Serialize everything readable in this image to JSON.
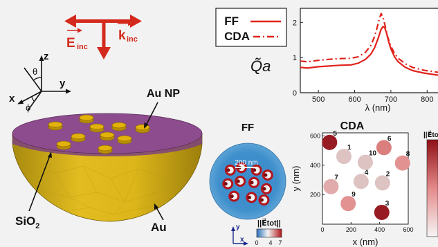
{
  "schematic": {
    "e_label": "E",
    "e_sub": "inc",
    "k_label": "k",
    "k_sub": "inc",
    "axis_z": "z",
    "axis_x": "x",
    "axis_y": "y",
    "theta": "θ",
    "phi": "ϕ",
    "np_label": "Au NP",
    "sio2_label": "SiO",
    "sio2_sub": "2",
    "au_label": "Au",
    "colors": {
      "arrow": "#d42a1d",
      "sio2": "#8b4d8c",
      "au": "#d9b21a",
      "np": "#e3b20a"
    }
  },
  "legend": {
    "ff": "FF",
    "cda": "CDA",
    "color": "#e0221b"
  },
  "spectrum": {
    "ylabel": "Q̃a",
    "xlabel": "λ (nm)",
    "xticks": [
      "500",
      "600",
      "700",
      "800"
    ],
    "yticks": [
      "0",
      "1",
      "2"
    ]
  },
  "chart_data": {
    "type": "line",
    "xlabel": "λ (nm)",
    "ylabel": "Q̃a",
    "xlim": [
      450,
      830
    ],
    "ylim": [
      0,
      2.4
    ],
    "series": [
      {
        "name": "FF",
        "style": "solid",
        "x": [
          450,
          470,
          500,
          530,
          560,
          590,
          610,
          630,
          645,
          655,
          665,
          672,
          678,
          683,
          688,
          693,
          700,
          710,
          720,
          740,
          760,
          790,
          830
        ],
        "y": [
          0.72,
          0.7,
          0.74,
          0.76,
          0.78,
          0.79,
          0.84,
          0.95,
          1.1,
          1.28,
          1.55,
          1.78,
          1.88,
          1.85,
          1.7,
          1.48,
          1.25,
          1.02,
          0.88,
          0.72,
          0.63,
          0.56,
          0.5
        ]
      },
      {
        "name": "CDA",
        "style": "dashdot",
        "x": [
          450,
          470,
          500,
          530,
          560,
          590,
          610,
          630,
          645,
          655,
          662,
          668,
          673,
          678,
          683,
          690,
          700,
          710,
          720,
          740,
          760,
          790,
          830
        ],
        "y": [
          0.9,
          0.88,
          0.92,
          0.95,
          0.97,
          0.98,
          1.02,
          1.15,
          1.35,
          1.6,
          1.85,
          2.1,
          2.25,
          2.15,
          1.95,
          1.62,
          1.32,
          1.12,
          0.98,
          0.82,
          0.72,
          0.64,
          0.58
        ]
      }
    ]
  },
  "ff_map": {
    "title": "FF",
    "scalebar": "200 nm",
    "colorbar_label": "||E⃗tot||",
    "colorbar_ticks": [
      "0",
      "4",
      "7"
    ]
  },
  "cda_map": {
    "title": "CDA",
    "xlabel": "x (nm)",
    "ylabel": "y (nm)",
    "xticks": [
      "0",
      "200",
      "400",
      "600"
    ],
    "yticks": [
      "200",
      "400",
      "600"
    ],
    "colorbar_label": "||E⃗to",
    "xlim": [
      0,
      600
    ],
    "ylim": [
      0,
      620
    ],
    "particles": [
      {
        "id": "1",
        "x": 150,
        "y": 460,
        "field": 0.15
      },
      {
        "id": "2",
        "x": 420,
        "y": 280,
        "field": 0.15
      },
      {
        "id": "3",
        "x": 415,
        "y": 80,
        "field": 0.95
      },
      {
        "id": "4",
        "x": 270,
        "y": 290,
        "field": 0.15
      },
      {
        "id": "5",
        "x": 50,
        "y": 555,
        "field": 0.95
      },
      {
        "id": "6",
        "x": 430,
        "y": 520,
        "field": 0.55
      },
      {
        "id": "7",
        "x": 60,
        "y": 255,
        "field": 0.3
      },
      {
        "id": "8",
        "x": 560,
        "y": 415,
        "field": 0.45
      },
      {
        "id": "9",
        "x": 180,
        "y": 140,
        "field": 0.45
      },
      {
        "id": "10",
        "x": 300,
        "y": 420,
        "field": 0.15
      }
    ]
  }
}
